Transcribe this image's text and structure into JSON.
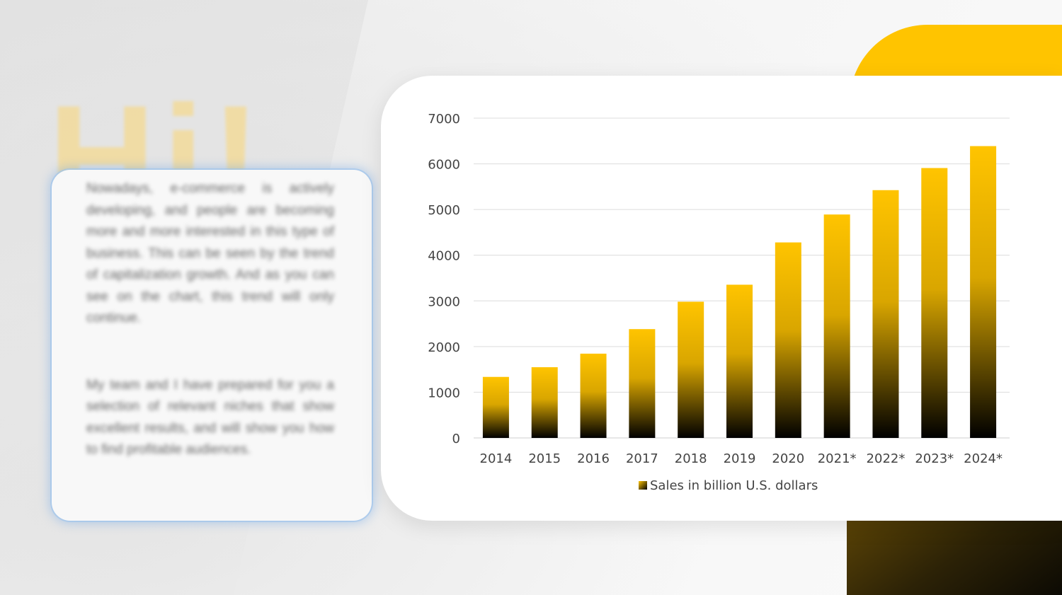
{
  "decor": {
    "hi_text": "Hi!",
    "accent": "#ffc400",
    "dark": "#2c2206"
  },
  "text_card": {
    "paragraph_1": "Nowadays, e-commerce is actively developing, and people are becoming more and more interested in this type of business. This can be seen by the trend of capitalization growth. And as you can see on the chart, this trend will only continue.",
    "paragraph_2": "My team and I have prepared for you a selection of relevant niches that show excellent results, and will show you how to find profitable audiences."
  },
  "chart_data": {
    "type": "bar",
    "categories": [
      "2014",
      "2015",
      "2016",
      "2017",
      "2018",
      "2019",
      "2020",
      "2021*",
      "2022*",
      "2023*",
      "2024*"
    ],
    "series": [
      {
        "name": "Sales in billion U.S. dollars",
        "values": [
          1336,
          1548,
          1845,
          2382,
          2982,
          3354,
          4280,
          4891,
          5424,
          5908,
          6388
        ]
      }
    ],
    "ylim": [
      0,
      7000
    ],
    "yticks": [
      0,
      1000,
      2000,
      3000,
      4000,
      5000,
      6000,
      7000
    ],
    "grid": true,
    "legend_position": "bottom",
    "bar_gradient": [
      "#ffc400",
      "#000000"
    ]
  }
}
